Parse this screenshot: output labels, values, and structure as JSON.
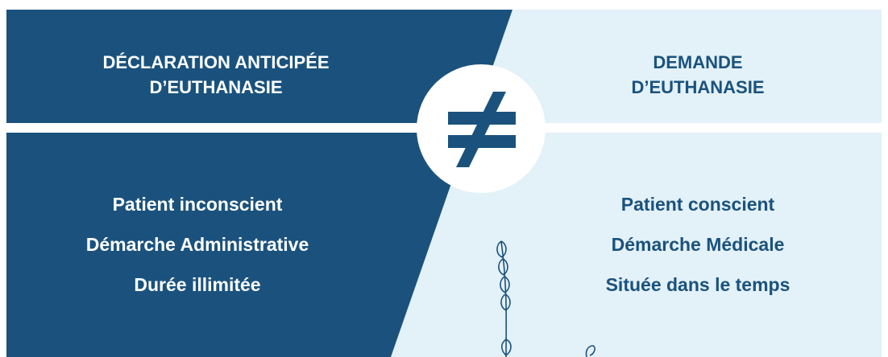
{
  "left": {
    "title": [
      "DÉCLARATION ANTICIPÉE",
      "D’EUTHANASIE"
    ],
    "items": [
      "Patient inconscient",
      "Démarche Administrative",
      "Durée illimitée"
    ]
  },
  "right": {
    "title": [
      "DEMANDE",
      "D’EUTHANASIE"
    ],
    "items": [
      "Patient conscient",
      "Démarche Médicale",
      "Située dans le temps"
    ]
  }
}
